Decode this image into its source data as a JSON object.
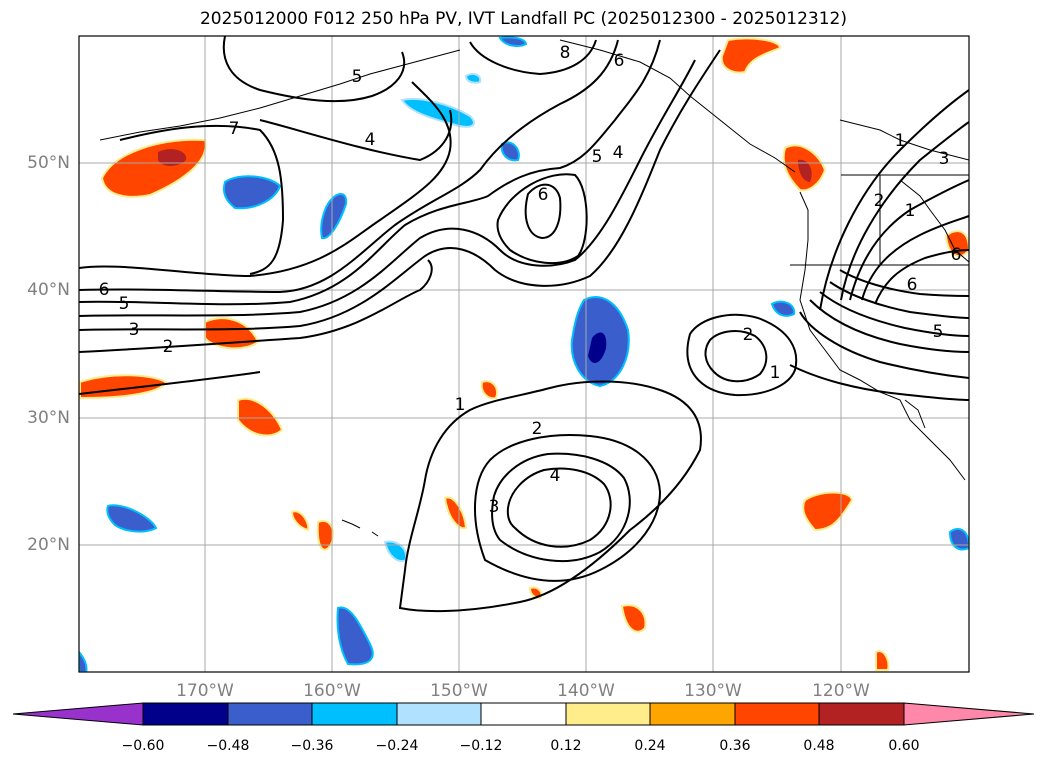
{
  "title": "2025012000 F012 250 hPa PV, IVT Landfall PC (2025012300 - 2025012312)",
  "latitude_labels": [
    "50°N",
    "40°N",
    "30°N",
    "20°N"
  ],
  "longitude_labels": [
    "170°W",
    "160°W",
    "150°W",
    "140°W",
    "130°W",
    "120°W"
  ],
  "colorbar": {
    "ticks": [
      "−0.60",
      "−0.48",
      "−0.36",
      "−0.24",
      "−0.12",
      "0.12",
      "0.24",
      "0.36",
      "0.48",
      "0.60"
    ],
    "colors": [
      "#9932cc",
      "#00008b",
      "#3a5fcd",
      "#00bfff",
      "#b0e2ff",
      "#ffffff",
      "#ffec8b",
      "#ffa500",
      "#ff4500",
      "#b22222",
      "#ff88aa"
    ]
  },
  "contour_labels": [
    "7",
    "5",
    "6",
    "4",
    "8",
    "6",
    "5",
    "4",
    "6",
    "6",
    "5",
    "3",
    "2",
    "1",
    "2",
    "1",
    "2",
    "4",
    "3",
    "1",
    "3",
    "2",
    "1",
    "6",
    "5"
  ]
}
